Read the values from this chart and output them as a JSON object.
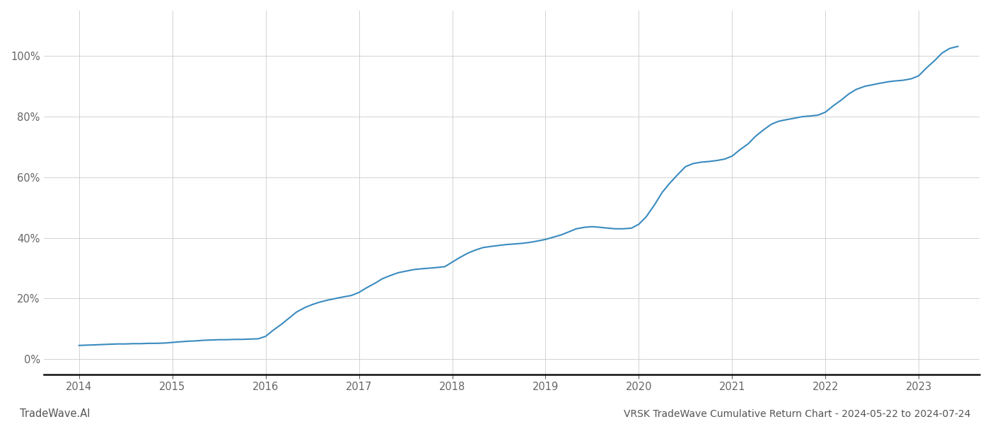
{
  "title": "VRSK TradeWave Cumulative Return Chart - 2024-05-22 to 2024-07-24",
  "watermark": "TradeWave.AI",
  "line_color": "#3a8bbf",
  "line_width": 1.5,
  "background_color": "#ffffff",
  "grid_color": "#cccccc",
  "x_data": [
    2014.0,
    2014.08,
    2014.17,
    2014.25,
    2014.33,
    2014.42,
    2014.5,
    2014.58,
    2014.67,
    2014.75,
    2014.83,
    2014.92,
    2015.0,
    2015.08,
    2015.17,
    2015.25,
    2015.33,
    2015.42,
    2015.5,
    2015.58,
    2015.67,
    2015.75,
    2015.83,
    2015.92,
    2016.0,
    2016.08,
    2016.17,
    2016.25,
    2016.33,
    2016.42,
    2016.5,
    2016.58,
    2016.67,
    2016.75,
    2016.83,
    2016.92,
    2017.0,
    2017.08,
    2017.17,
    2017.25,
    2017.33,
    2017.42,
    2017.5,
    2017.58,
    2017.67,
    2017.75,
    2017.83,
    2017.92,
    2018.0,
    2018.08,
    2018.17,
    2018.25,
    2018.33,
    2018.42,
    2018.5,
    2018.58,
    2018.67,
    2018.75,
    2018.83,
    2018.92,
    2019.0,
    2019.08,
    2019.17,
    2019.25,
    2019.33,
    2019.42,
    2019.5,
    2019.58,
    2019.67,
    2019.75,
    2019.83,
    2019.92,
    2020.0,
    2020.08,
    2020.17,
    2020.25,
    2020.33,
    2020.42,
    2020.5,
    2020.58,
    2020.67,
    2020.75,
    2020.83,
    2020.92,
    2021.0,
    2021.08,
    2021.17,
    2021.25,
    2021.33,
    2021.42,
    2021.5,
    2021.58,
    2021.67,
    2021.75,
    2021.83,
    2021.92,
    2022.0,
    2022.08,
    2022.17,
    2022.25,
    2022.33,
    2022.42,
    2022.5,
    2022.58,
    2022.67,
    2022.75,
    2022.83,
    2022.92,
    2023.0,
    2023.08,
    2023.17,
    2023.25,
    2023.33,
    2023.42
  ],
  "y_data": [
    4.5,
    4.6,
    4.7,
    4.8,
    4.9,
    5.0,
    5.0,
    5.1,
    5.1,
    5.2,
    5.2,
    5.3,
    5.5,
    5.7,
    5.9,
    6.0,
    6.2,
    6.3,
    6.4,
    6.4,
    6.5,
    6.5,
    6.6,
    6.7,
    7.5,
    9.5,
    11.5,
    13.5,
    15.5,
    17.0,
    18.0,
    18.8,
    19.5,
    20.0,
    20.5,
    21.0,
    22.0,
    23.5,
    25.0,
    26.5,
    27.5,
    28.5,
    29.0,
    29.5,
    29.8,
    30.0,
    30.2,
    30.5,
    32.0,
    33.5,
    35.0,
    36.0,
    36.8,
    37.2,
    37.5,
    37.8,
    38.0,
    38.2,
    38.5,
    39.0,
    39.5,
    40.2,
    41.0,
    42.0,
    43.0,
    43.5,
    43.7,
    43.5,
    43.2,
    43.0,
    43.0,
    43.2,
    44.5,
    47.0,
    51.0,
    55.0,
    58.0,
    61.0,
    63.5,
    64.5,
    65.0,
    65.2,
    65.5,
    66.0,
    67.0,
    69.0,
    71.0,
    73.5,
    75.5,
    77.5,
    78.5,
    79.0,
    79.5,
    80.0,
    80.2,
    80.5,
    81.5,
    83.5,
    85.5,
    87.5,
    89.0,
    90.0,
    90.5,
    91.0,
    91.5,
    91.8,
    92.0,
    92.5,
    93.5,
    96.0,
    98.5,
    101.0,
    102.5,
    103.2
  ],
  "ylim": [
    -5,
    115
  ],
  "yticks": [
    0,
    20,
    40,
    60,
    80,
    100
  ],
  "xlim": [
    2013.62,
    2023.65
  ],
  "xticks": [
    2014,
    2015,
    2016,
    2017,
    2018,
    2019,
    2020,
    2021,
    2022,
    2023
  ],
  "title_fontsize": 10,
  "tick_fontsize": 10.5,
  "watermark_fontsize": 10.5,
  "title_color": "#555555",
  "watermark_color": "#555555",
  "tick_color": "#666666",
  "bottom_spine_color": "#111111",
  "bottom_spine_width": 1.8
}
